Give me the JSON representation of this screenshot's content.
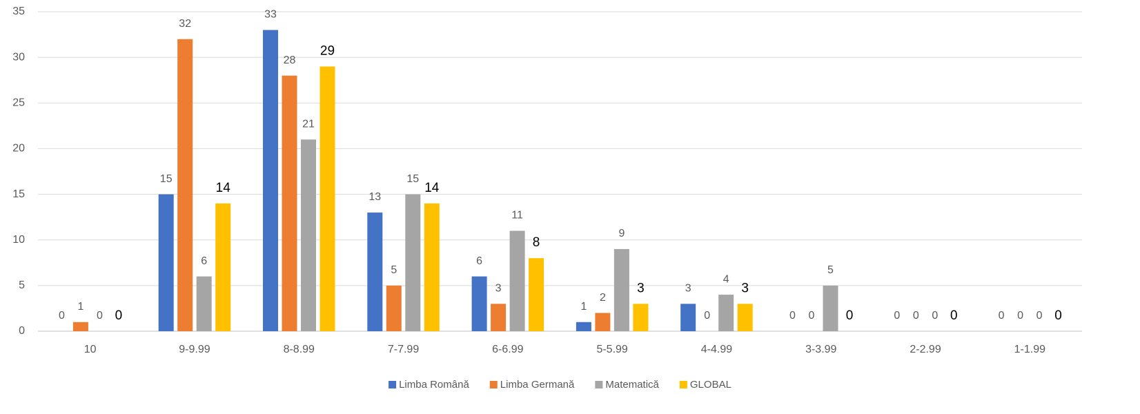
{
  "chart_data": {
    "type": "bar",
    "categories": [
      "10",
      "9-9.99",
      "8-8.99",
      "7-7.99",
      "6-6.99",
      "5-5.99",
      "4-4.99",
      "3-3.99",
      "2-2.99",
      "1-1.99"
    ],
    "series": [
      {
        "name": "Limba Română",
        "color": "#4472c4",
        "values": [
          0,
          15,
          33,
          13,
          6,
          1,
          3,
          0,
          0,
          0
        ]
      },
      {
        "name": "Limba Germană",
        "color": "#ed7d31",
        "values": [
          1,
          32,
          28,
          5,
          3,
          2,
          0,
          0,
          0,
          0
        ]
      },
      {
        "name": "Matematică",
        "color": "#a5a5a5",
        "values": [
          0,
          6,
          21,
          15,
          11,
          9,
          4,
          5,
          0,
          0
        ]
      },
      {
        "name": "GLOBAL",
        "color": "#ffc000",
        "values": [
          0,
          14,
          29,
          14,
          8,
          3,
          3,
          0,
          0,
          0
        ]
      }
    ],
    "ylim": [
      0,
      35
    ],
    "yticks": [
      0,
      5,
      10,
      15,
      20,
      25,
      30,
      35
    ],
    "grid": true,
    "legend": "bottom"
  }
}
